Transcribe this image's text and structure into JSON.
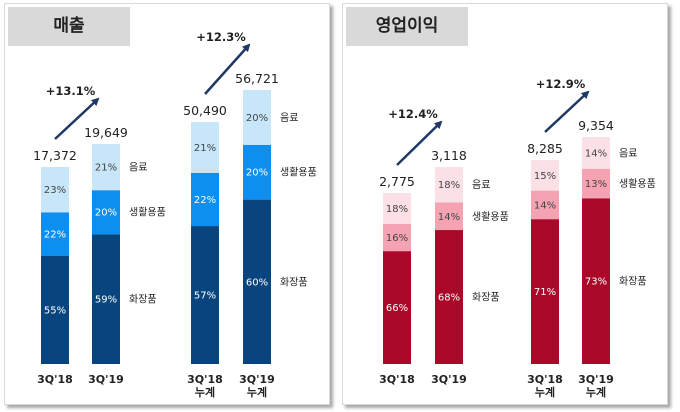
{
  "chart_data": [
    {
      "type": "bar",
      "stacked": true,
      "title": "매출",
      "categories": [
        [
          "3Q'18"
        ],
        [
          "3Q'19"
        ],
        [
          "3Q'18",
          "누계"
        ],
        [
          "3Q'19",
          "누계"
        ]
      ],
      "totals": [
        "17,372",
        "19,649",
        "50,490",
        "56,721"
      ],
      "series": [
        {
          "name": "화장품",
          "values": [
            "55%",
            "59%",
            "57%",
            "60%"
          ],
          "color": "#08457e",
          "text_color": "#ffffff"
        },
        {
          "name": "생활용품",
          "values": [
            "22%",
            "20%",
            "22%",
            "20%"
          ],
          "color": "#0d8ff0",
          "text_color": "#ffffff"
        },
        {
          "name": "음료",
          "values": [
            "23%",
            "21%",
            "21%",
            "20%"
          ],
          "color": "#c8e6fa",
          "text_color": "#444444"
        }
      ],
      "growth": [
        {
          "label": "+13.1%",
          "from": 0,
          "to": 1
        },
        {
          "label": "+12.3%",
          "from": 2,
          "to": 3
        }
      ],
      "arrow_color": "#1f3864"
    },
    {
      "type": "bar",
      "stacked": true,
      "title": "영업이익",
      "categories": [
        [
          "3Q'18"
        ],
        [
          "3Q'19"
        ],
        [
          "3Q'18",
          "누계"
        ],
        [
          "3Q'19",
          "누계"
        ]
      ],
      "totals": [
        "2,775",
        "3,118",
        "8,285",
        "9,354"
      ],
      "series": [
        {
          "name": "화장품",
          "values": [
            "66%",
            "68%",
            "71%",
            "73%"
          ],
          "color": "#aa0729",
          "text_color": "#ffffff"
        },
        {
          "name": "생활용품",
          "values": [
            "16%",
            "14%",
            "14%",
            "13%"
          ],
          "color": "#f5a3b3",
          "text_color": "#444444"
        },
        {
          "name": "음료",
          "values": [
            "18%",
            "18%",
            "15%",
            "14%"
          ],
          "color": "#fbe1e5",
          "text_color": "#444444"
        }
      ],
      "growth": [
        {
          "label": "+12.4%",
          "from": 0,
          "to": 1
        },
        {
          "label": "+12.9%",
          "from": 2,
          "to": 3
        }
      ],
      "arrow_color": "#1f3864"
    }
  ]
}
